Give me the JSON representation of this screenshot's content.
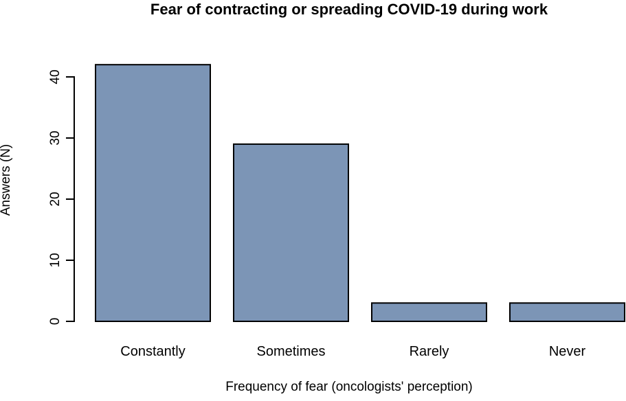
{
  "page": {
    "background": "#ffffff"
  },
  "chart_data": {
    "type": "bar",
    "title": "Fear of contracting or spreading COVID-19 during work",
    "categories": [
      "Constantly",
      "Sometimes",
      "Rarely",
      "Never"
    ],
    "values": [
      42,
      29,
      3,
      3
    ],
    "xlabel": "Frequency of fear (oncologists' perception)",
    "ylabel": "Answers (N)",
    "ylim": [
      0,
      42
    ],
    "yticks": [
      0,
      10,
      20,
      30,
      40
    ],
    "grid": false,
    "legend_position": "none",
    "bar_fill_color": "#7C95B6",
    "bar_border_color": "#000000",
    "axis_color": "#000000",
    "text_color": "#000000"
  }
}
